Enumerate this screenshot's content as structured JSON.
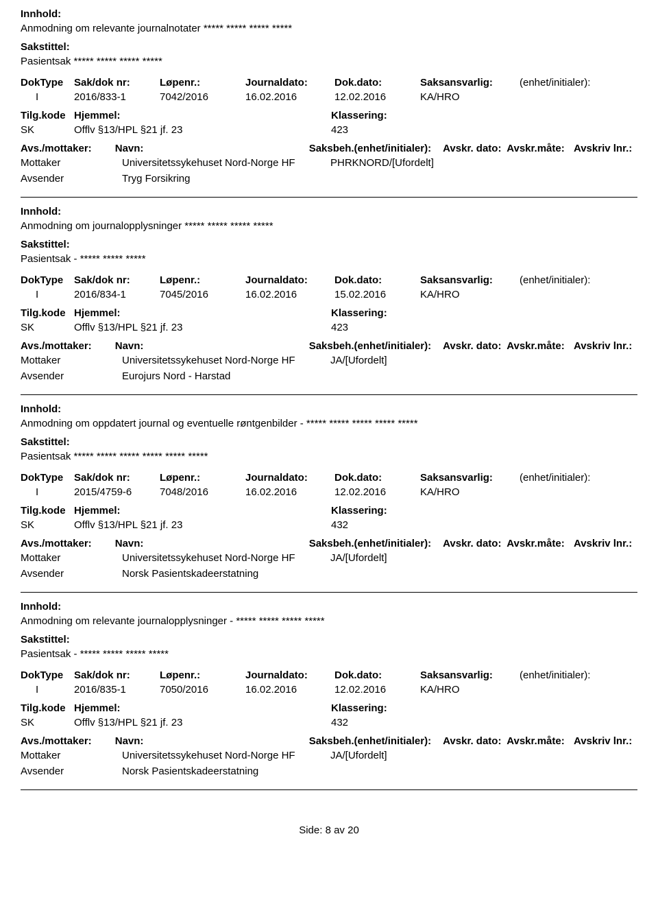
{
  "labels": {
    "innhold": "Innhold:",
    "sakstittel": "Sakstittel:",
    "doktype": "DokType",
    "sakdok": "Sak/dok nr:",
    "lopenr": "Løpenr.:",
    "journaldato": "Journaldato:",
    "dokdato": "Dok.dato:",
    "saksansvarlig": "Saksansvarlig:",
    "enhet": "(enhet/initialer):",
    "tilgkode": "Tilg.kode",
    "hjemmel": "Hjemmel:",
    "klassering": "Klassering:",
    "avsmottaker": "Avs./mottaker:",
    "navn": "Navn:",
    "saksbeh": "Saksbeh.(enhet/initialer):",
    "avskrdato": "Avskr. dato:",
    "avskrmate": "Avskr.måte:",
    "avskrivlnr": "Avskriv lnr.:",
    "mottaker": "Mottaker",
    "avsender": "Avsender"
  },
  "footer": {
    "prefix": "Side:",
    "page": "8",
    "of": "av",
    "total": "20"
  },
  "entries": [
    {
      "innhold": "Anmodning om relevante journalnotater ***** ***** ***** *****",
      "sakstittel": "Pasientsak ***** ***** ***** *****",
      "doktype": "I",
      "sakdok": "2016/833-1",
      "lopenr": "7042/2016",
      "journaldato": "16.02.2016",
      "dokdato": "12.02.2016",
      "saksansvarlig": "KA/HRO",
      "tilgkode": "SK",
      "hjemmel": "Offlv §13/HPL §21 jf. 23",
      "klassering": "423",
      "mottaker_navn": "Universitetssykehuset Nord-Norge HF",
      "mottaker_saksbeh": "PHRKNORD/[Ufordelt]",
      "avsender_navn": "Tryg Forsikring"
    },
    {
      "innhold": "Anmodning om journalopplysninger ***** ***** ***** *****",
      "sakstittel": "Pasientsak - ***** ***** *****",
      "doktype": "I",
      "sakdok": "2016/834-1",
      "lopenr": "7045/2016",
      "journaldato": "16.02.2016",
      "dokdato": "15.02.2016",
      "saksansvarlig": "KA/HRO",
      "tilgkode": "SK",
      "hjemmel": "Offlv §13/HPL §21 jf. 23",
      "klassering": "423",
      "mottaker_navn": "Universitetssykehuset Nord-Norge HF",
      "mottaker_saksbeh": "JA/[Ufordelt]",
      "avsender_navn": "Eurojurs Nord - Harstad"
    },
    {
      "innhold": "Anmodning om oppdatert journal og eventuelle røntgenbilder - ***** ***** ***** ***** *****",
      "sakstittel": "Pasientsak ***** ***** ***** ***** ***** *****",
      "doktype": "I",
      "sakdok": "2015/4759-6",
      "lopenr": "7048/2016",
      "journaldato": "16.02.2016",
      "dokdato": "12.02.2016",
      "saksansvarlig": "KA/HRO",
      "tilgkode": "SK",
      "hjemmel": "Offlv §13/HPL §21 jf. 23",
      "klassering": "432",
      "mottaker_navn": "Universitetssykehuset Nord-Norge HF",
      "mottaker_saksbeh": "JA/[Ufordelt]",
      "avsender_navn": "Norsk Pasientskadeerstatning"
    },
    {
      "innhold": "Anmodning om relevante journalopplysninger - ***** ***** ***** *****",
      "sakstittel": "Pasientsak - ***** ***** ***** *****",
      "doktype": "I",
      "sakdok": "2016/835-1",
      "lopenr": "7050/2016",
      "journaldato": "16.02.2016",
      "dokdato": "12.02.2016",
      "saksansvarlig": "KA/HRO",
      "tilgkode": "SK",
      "hjemmel": "Offlv §13/HPL §21 jf. 23",
      "klassering": "432",
      "mottaker_navn": "Universitetssykehuset Nord-Norge HF",
      "mottaker_saksbeh": "JA/[Ufordelt]",
      "avsender_navn": "Norsk Pasientskadeerstatning"
    }
  ]
}
